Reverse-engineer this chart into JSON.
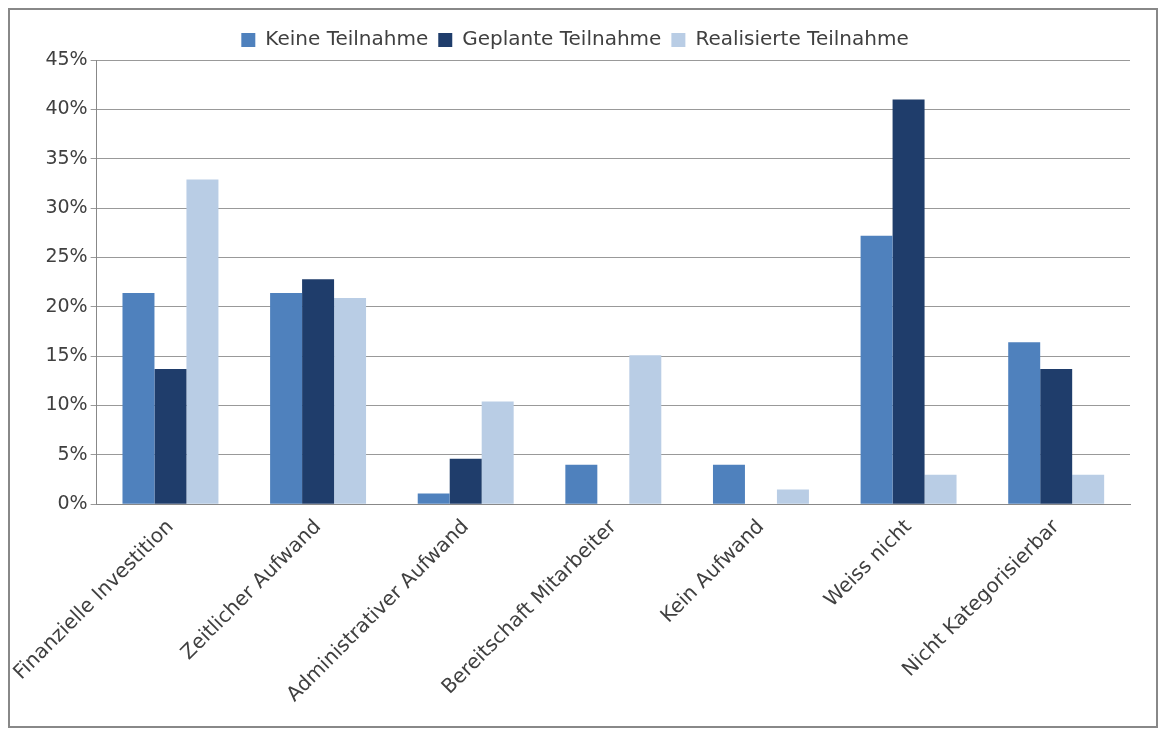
{
  "chart_data": {
    "type": "bar",
    "categories": [
      "Finanzielle Investition",
      "Zeitlicher Aufwand",
      "Administrativer Aufwand",
      "Bereitschaft Mitarbeiter",
      "Kein Aufwand",
      "Weiss nicht",
      "Nicht Kategorisierbar"
    ],
    "series": [
      {
        "name": "Keine Teilnahme",
        "color": "#4f81bd",
        "values": [
          21.4,
          21.4,
          1.1,
          4.0,
          4.0,
          27.2,
          16.4
        ]
      },
      {
        "name": "Geplante Teilnahme",
        "color": "#1f3d6b",
        "values": [
          13.7,
          22.8,
          4.6,
          0,
          0,
          41.0,
          13.7
        ]
      },
      {
        "name": "Realisierte Teilnahme",
        "color": "#b9cde5",
        "values": [
          32.9,
          20.9,
          10.4,
          15.1,
          1.5,
          3.0,
          3.0
        ]
      }
    ],
    "ylim": [
      0,
      45
    ],
    "yticks": [
      {
        "value": 0,
        "label": "0%"
      },
      {
        "value": 5,
        "label": "5%"
      },
      {
        "value": 10,
        "label": "10%"
      },
      {
        "value": 15,
        "label": "15%"
      },
      {
        "value": 20,
        "label": "20%"
      },
      {
        "value": 25,
        "label": "25%"
      },
      {
        "value": 30,
        "label": "30%"
      },
      {
        "value": 35,
        "label": "35%"
      },
      {
        "value": 40,
        "label": "40%"
      },
      {
        "value": 45,
        "label": "45%"
      }
    ],
    "grid": "y",
    "legend": "top"
  }
}
